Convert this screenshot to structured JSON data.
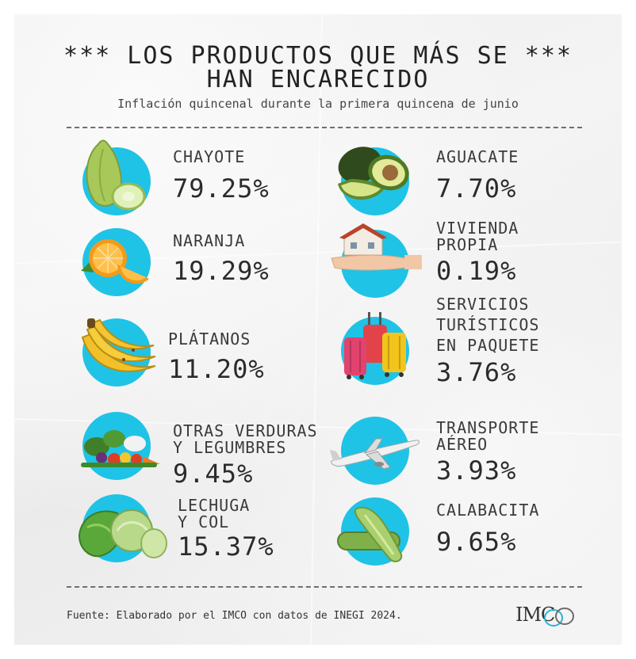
{
  "title_line1": "*** LOS PRODUCTOS QUE MÁS SE ***",
  "title_line2": "HAN ENCARECIDO",
  "subtitle": "Inflación quincenal durante la primera quincena de junio",
  "accent_color": "#1fc3e6",
  "items": [
    {
      "name_lines": [
        "CHAYOTE"
      ],
      "value": "79.25%",
      "icon": "chayote-icon"
    },
    {
      "name_lines": [
        "NARANJA"
      ],
      "value": "19.29%",
      "icon": "orange-icon"
    },
    {
      "name_lines": [
        "PLÁTANOS"
      ],
      "value": "11.20%",
      "icon": "banana-icon"
    },
    {
      "name_lines": [
        "OTRAS VERDURAS",
        "Y LEGUMBRES"
      ],
      "value": "9.45%",
      "icon": "vegetables-icon"
    },
    {
      "name_lines": [
        "LECHUGA",
        "Y COL"
      ],
      "value": "15.37%",
      "icon": "lettuce-cabbage-icon"
    },
    {
      "name_lines": [
        "AGUACATE"
      ],
      "value": "7.70%",
      "icon": "avocado-icon"
    },
    {
      "name_lines": [
        "VIVIENDA",
        "PROPIA"
      ],
      "value": "0.19%",
      "icon": "house-in-hand-icon"
    },
    {
      "name_lines": [
        "SERVICIOS",
        "TURÍSTICOS",
        "EN PAQUETE"
      ],
      "value": "3.76%",
      "icon": "suitcases-icon"
    },
    {
      "name_lines": [
        "TRANSPORTE",
        "AÉREO"
      ],
      "value": "3.93%",
      "icon": "airplane-icon"
    },
    {
      "name_lines": [
        "CALABACITA"
      ],
      "value": "9.65%",
      "icon": "zucchini-icon"
    }
  ],
  "source": "Fuente: Elaborado por el IMCO con datos de INEGI 2024.",
  "logo_text": "IMC"
}
